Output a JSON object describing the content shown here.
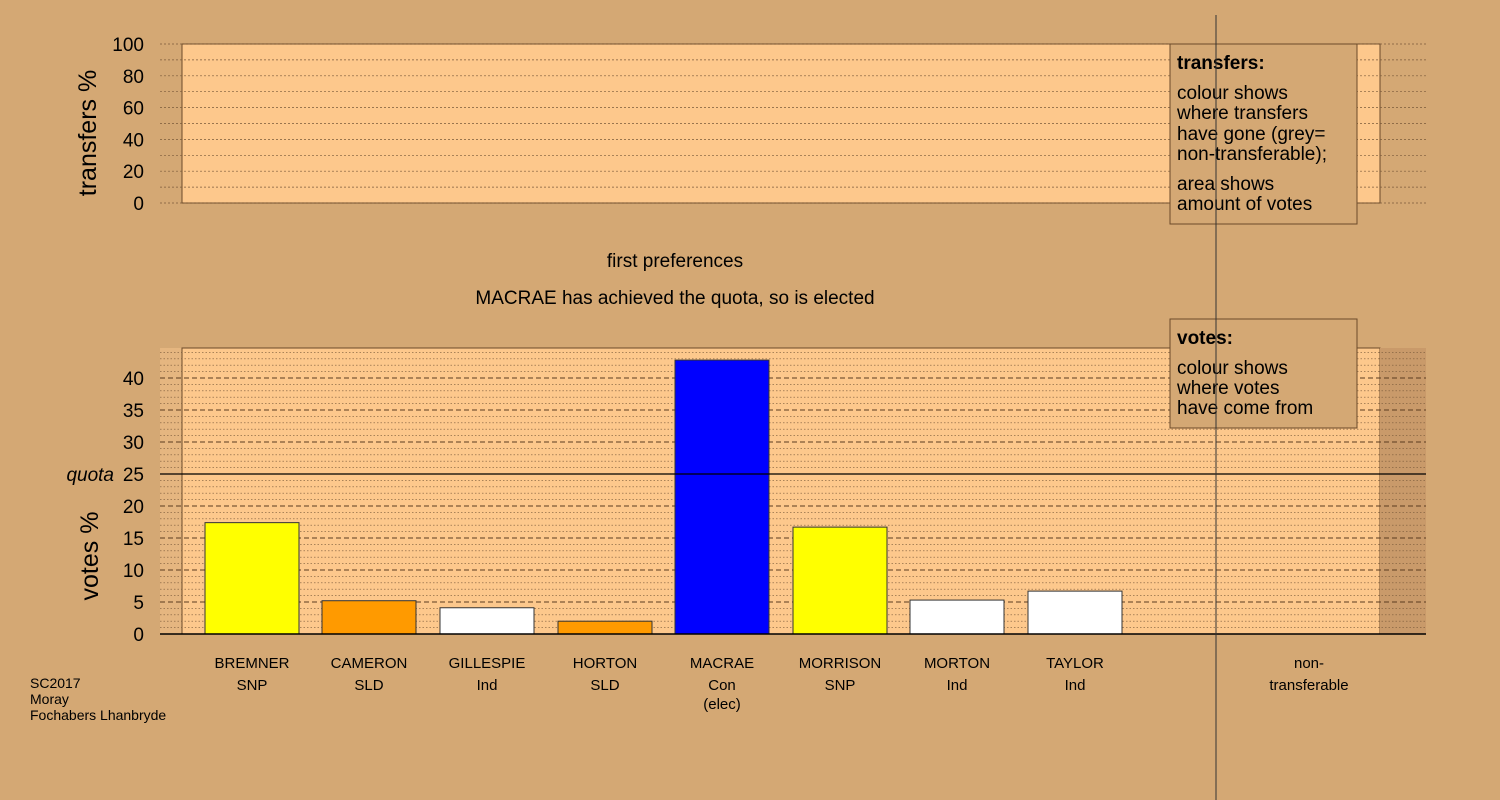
{
  "chart_data": {
    "type": "bar",
    "stage": "first preferences",
    "status": "MACRAE has achieved the quota, so is elected",
    "top_chart": {
      "ylabel": "transfers %",
      "ylim": [
        0,
        100
      ],
      "yticks": [
        "0",
        "20",
        "40",
        "60",
        "80",
        "100"
      ],
      "values": []
    },
    "bottom_chart": {
      "ylabel": "votes %",
      "ylim": [
        0,
        45
      ],
      "yticks": [
        "0",
        "5",
        "10",
        "15",
        "20",
        "25",
        "30",
        "35",
        "40"
      ],
      "quota_label": "quota",
      "quota": 25
    },
    "candidates": [
      {
        "name": "BREMNER",
        "party": "SNP",
        "note": "",
        "value": 17.4,
        "color": "#ffff00"
      },
      {
        "name": "CAMERON",
        "party": "SLD",
        "note": "",
        "value": 5.2,
        "color": "#ff9a00"
      },
      {
        "name": "GILLESPIE",
        "party": "Ind",
        "note": "",
        "value": 4.1,
        "color": "#ffffff"
      },
      {
        "name": "HORTON",
        "party": "SLD",
        "note": "",
        "value": 2.0,
        "color": "#ff9a00"
      },
      {
        "name": "MACRAE",
        "party": "Con",
        "note": "(elec)",
        "value": 42.8,
        "color": "#0000ff"
      },
      {
        "name": "MORRISON",
        "party": "SNP",
        "note": "",
        "value": 16.7,
        "color": "#ffff00"
      },
      {
        "name": "MORTON",
        "party": "Ind",
        "note": "",
        "value": 5.3,
        "color": "#ffffff"
      },
      {
        "name": "TAYLOR",
        "party": "Ind",
        "note": "",
        "value": 6.7,
        "color": "#ffffff"
      }
    ],
    "nontransferable": {
      "line1": "non-",
      "line2": "transferable",
      "value": 0
    },
    "legend_transfers": {
      "title": "transfers:",
      "lines": [
        "colour shows",
        "where transfers",
        "have gone (grey=",
        "non-transferable);",
        "area shows",
        "amount of votes"
      ]
    },
    "legend_votes": {
      "title": "votes:",
      "lines": [
        "colour shows",
        "where votes",
        "have come from"
      ]
    },
    "footer": [
      "SC2017",
      "Moray",
      "Fochabers Lhanbryde"
    ],
    "colors": {
      "background": "#d4a874",
      "plot": "#fdc88c",
      "grid": "#7a5a3a"
    }
  }
}
